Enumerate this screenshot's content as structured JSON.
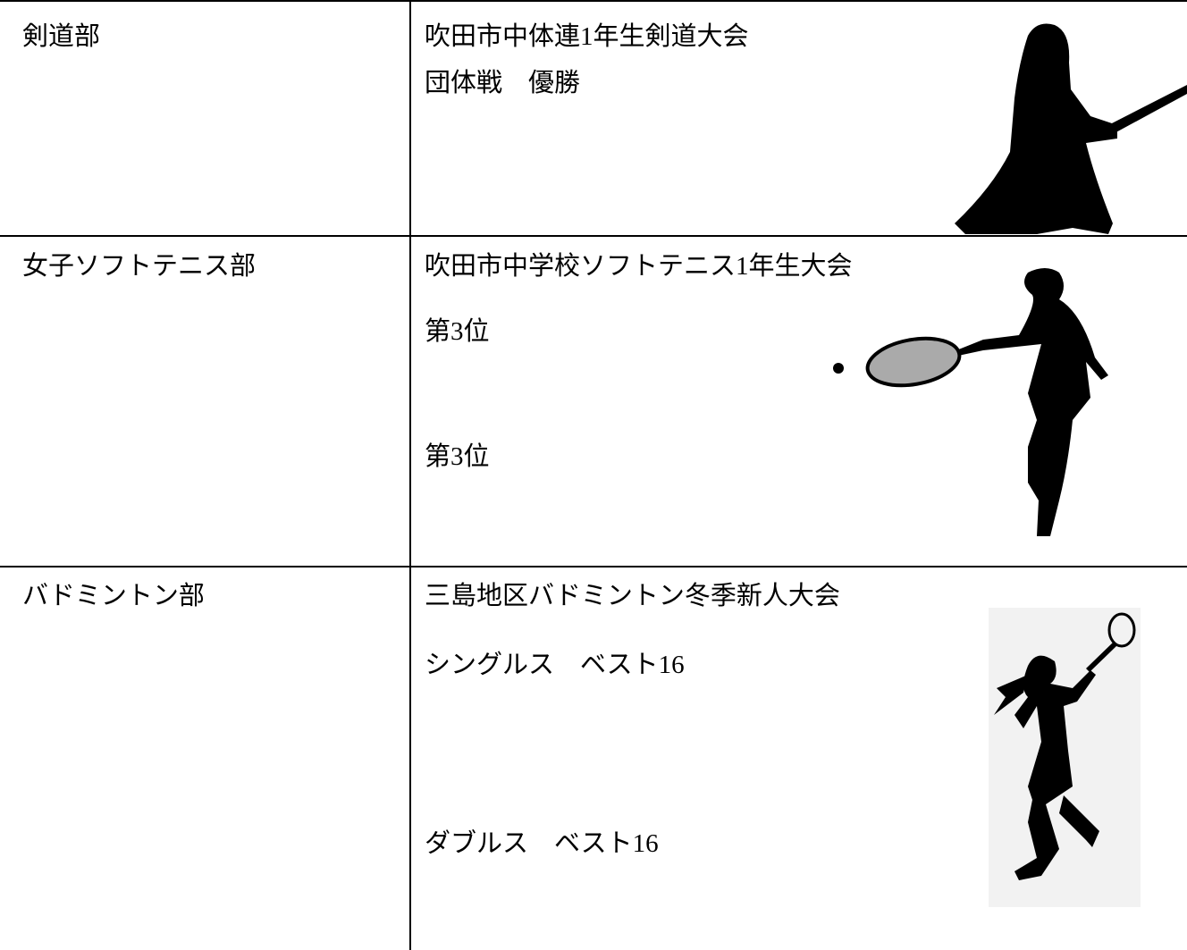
{
  "table": {
    "rows": [
      {
        "club": "剣道部",
        "results": [
          "吹田市中体連1年生剣道大会",
          "団体戦　優勝"
        ]
      },
      {
        "club": "女子ソフトテニス部",
        "results": [
          "吹田市中学校ソフトテニス1年生大会",
          "第3位",
          "第3位"
        ]
      },
      {
        "club": "バドミントン部",
        "results": [
          "三島地区バドミントン冬季新人大会",
          "シングルス　ベスト16",
          "ダブルス　ベスト16"
        ]
      }
    ]
  }
}
